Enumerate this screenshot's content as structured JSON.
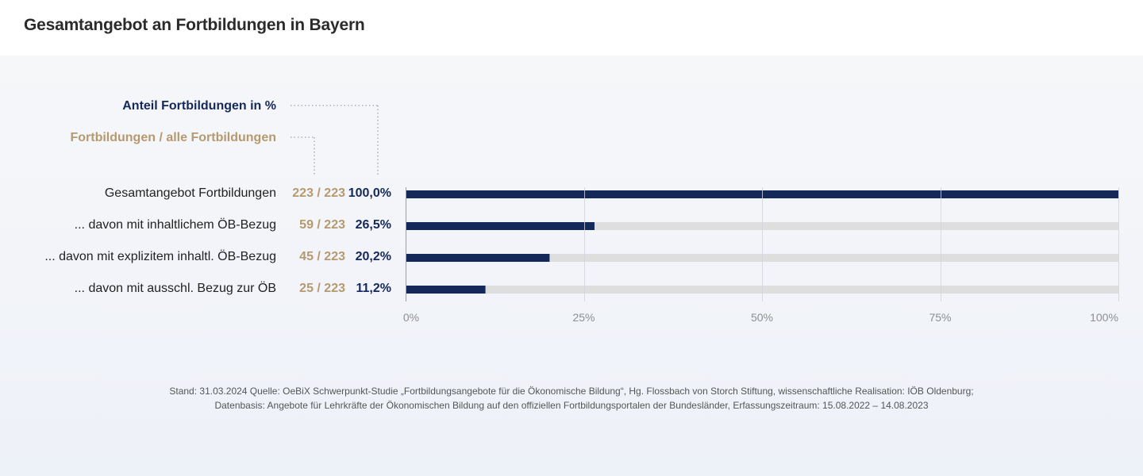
{
  "page": {
    "title": "Gesamtangebot an Fortbildungen in Bayern"
  },
  "legend": {
    "percent_label": "Anteil Fortbildungen  in %",
    "ratio_label": "Fortbildungen / alle Fortbildungen"
  },
  "colors": {
    "bar": "#14285a",
    "track": "#dedede",
    "ratio_text": "#b59a70",
    "percent_text": "#14285a",
    "grid": "#cfd3da",
    "legend_dots": "#a9adb8"
  },
  "chart_data": {
    "type": "bar",
    "orientation": "horizontal",
    "title": "Gesamtangebot an Fortbildungen in Bayern",
    "categories": [
      "Gesamtangebot Fortbildungen",
      "... davon mit inhaltlichem ÖB-Bezug",
      "... davon mit explizitem inhaltl. ÖB-Bezug",
      "... davon mit ausschl. Bezug zur ÖB"
    ],
    "ratios": [
      "223 / 223",
      "59 / 223",
      "45 / 223",
      "25 / 223"
    ],
    "percent_labels": [
      "100,0%",
      "26,5%",
      "20,2%",
      "11,2%"
    ],
    "values": [
      100.0,
      26.5,
      20.2,
      11.2
    ],
    "xlim": [
      0,
      100
    ],
    "x_ticks": [
      0,
      25,
      50,
      75,
      100
    ],
    "x_tick_labels": [
      "0%",
      "25%",
      "50%",
      "75%",
      "100%"
    ],
    "grid": true
  },
  "footnote": {
    "line1": "Stand: 31.03.2024 Quelle: OeBiX Schwerpunkt-Studie „Fortbildungsangebote für die Ökonomische Bildung“, Hg. Flossbach von Storch Stiftung, wissenschaftliche Realisation: IÖB Oldenburg;",
    "line2": "Datenbasis: Angebote für Lehrkräfte der Ökonomischen Bildung auf den offiziellen Fortbildungsportalen der Bundesländer, Erfassungszeitraum: 15.08.2022 – 14.08.2023"
  }
}
